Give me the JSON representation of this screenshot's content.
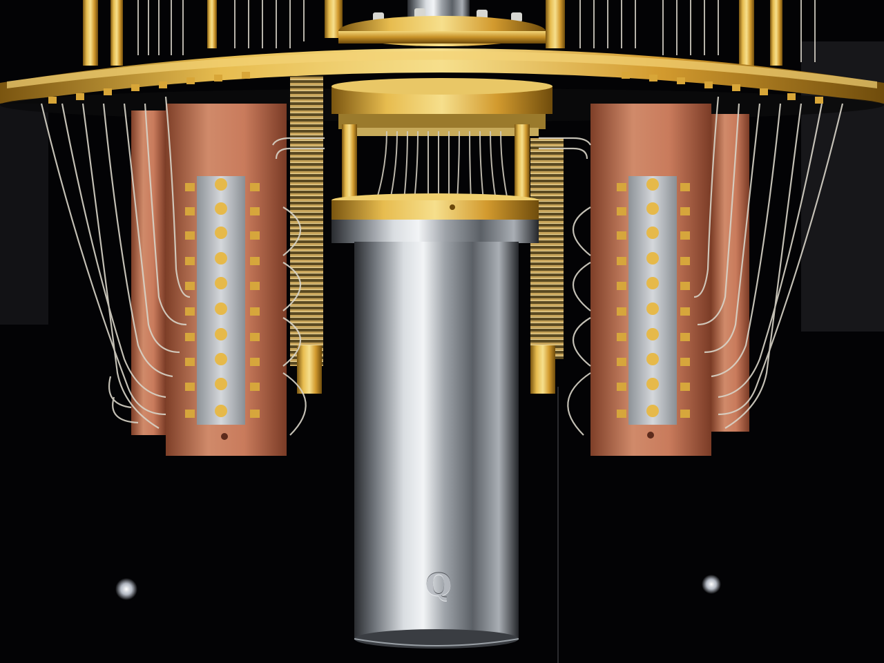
{
  "photo": {
    "background_color": "#030305",
    "palette": {
      "gold": "#d9a93a",
      "gold_dark": "#8a6512",
      "gold_light": "#f6df8c",
      "copper": "#c97b5c",
      "copper_dark": "#8e4a33",
      "silver": "#c9cdd2",
      "steel_dark": "#3a3d42",
      "cable": "#d8d4c8"
    },
    "cylinder_engraving": "Q"
  }
}
